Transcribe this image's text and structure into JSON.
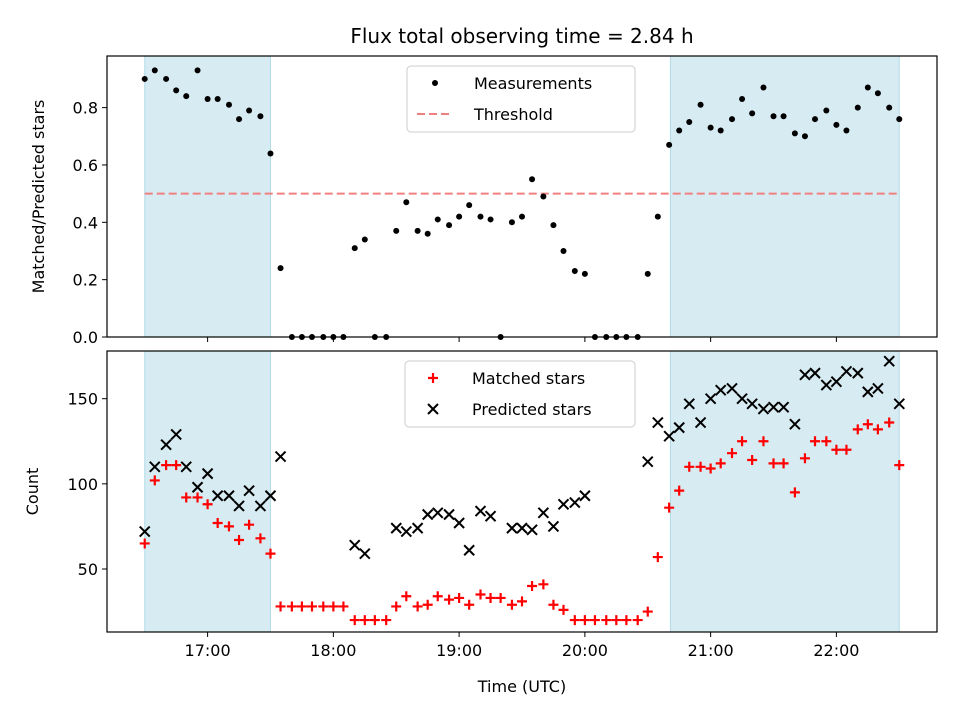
{
  "chart_data": {
    "title": "Flux total observing time = 2.84 h",
    "xlabel": "Time (UTC)",
    "x_tick_labels": [
      "17:00",
      "18:00",
      "19:00",
      "20:00",
      "21:00",
      "22:00"
    ],
    "x_tick_hours": [
      17,
      18,
      19,
      20,
      21,
      22
    ],
    "xlim_hours": [
      16.2,
      22.8
    ],
    "shaded_intervals_hours": [
      [
        16.5,
        17.5
      ],
      [
        20.68,
        22.5
      ]
    ],
    "shade_color": "#add8e6",
    "panels": [
      {
        "type": "scatter",
        "ylabel": "Matched/Predicted stars",
        "ylim": [
          0,
          0.98
        ],
        "y_ticks": [
          0.0,
          0.2,
          0.4,
          0.6,
          0.8
        ],
        "y_tick_labels": [
          "0.0",
          "0.2",
          "0.4",
          "0.6",
          "0.8"
        ],
        "threshold": 0.5,
        "threshold_color": "#f08080",
        "legend": [
          "Measurements",
          "Threshold"
        ],
        "series": [
          {
            "name": "Measurements",
            "color": "#000000",
            "marker": "dot",
            "x": [
              16.5,
              16.58,
              16.67,
              16.75,
              16.83,
              16.92,
              17.0,
              17.08,
              17.17,
              17.25,
              17.33,
              17.42,
              17.5,
              17.58,
              17.67,
              17.75,
              17.83,
              17.92,
              18.0,
              18.08,
              18.17,
              18.25,
              18.33,
              18.42,
              18.5,
              18.58,
              18.67,
              18.75,
              18.83,
              18.92,
              19.0,
              19.08,
              19.17,
              19.25,
              19.33,
              19.42,
              19.5,
              19.58,
              19.67,
              19.75,
              19.83,
              19.92,
              20.0,
              20.08,
              20.17,
              20.25,
              20.33,
              20.42,
              20.5,
              20.58,
              20.67,
              20.75,
              20.83,
              20.92,
              21.0,
              21.08,
              21.17,
              21.25,
              21.33,
              21.42,
              21.5,
              21.58,
              21.67,
              21.75,
              21.83,
              21.92,
              22.0,
              22.08,
              22.17,
              22.25,
              22.33,
              22.42,
              22.5
            ],
            "y": [
              0.9,
              0.93,
              0.9,
              0.86,
              0.84,
              0.93,
              0.83,
              0.83,
              0.81,
              0.76,
              0.79,
              0.77,
              0.64,
              0.24,
              0.0,
              0.0,
              0.0,
              0.0,
              0.0,
              0.0,
              0.31,
              0.34,
              0.0,
              0.0,
              0.37,
              0.47,
              0.37,
              0.36,
              0.41,
              0.39,
              0.42,
              0.46,
              0.42,
              0.41,
              0.0,
              0.4,
              0.42,
              0.55,
              0.49,
              0.39,
              0.3,
              0.23,
              0.22,
              0.0,
              0.0,
              0.0,
              0.0,
              0.0,
              0.22,
              0.42,
              0.67,
              0.72,
              0.75,
              0.81,
              0.73,
              0.72,
              0.76,
              0.83,
              0.78,
              0.87,
              0.77,
              0.77,
              0.71,
              0.7,
              0.76,
              0.79,
              0.74,
              0.72,
              0.8,
              0.87,
              0.85,
              0.8,
              0.76
            ]
          }
        ]
      },
      {
        "type": "scatter",
        "ylabel": "Count",
        "ylim": [
          13,
          178
        ],
        "y_ticks": [
          50,
          100,
          150
        ],
        "y_tick_labels": [
          "50",
          "100",
          "150"
        ],
        "legend": [
          "Matched stars",
          "Predicted stars"
        ],
        "series": [
          {
            "name": "Matched stars",
            "color": "#ff0000",
            "marker": "plus",
            "x": [
              16.5,
              16.58,
              16.67,
              16.75,
              16.83,
              16.92,
              17.0,
              17.08,
              17.17,
              17.25,
              17.33,
              17.42,
              17.5,
              17.58,
              17.67,
              17.75,
              17.83,
              17.92,
              18.0,
              18.08,
              18.17,
              18.25,
              18.33,
              18.42,
              18.5,
              18.58,
              18.67,
              18.75,
              18.83,
              18.92,
              19.0,
              19.08,
              19.17,
              19.25,
              19.33,
              19.42,
              19.5,
              19.58,
              19.67,
              19.75,
              19.83,
              19.92,
              20.0,
              20.08,
              20.17,
              20.25,
              20.33,
              20.42,
              20.5,
              20.58,
              20.67,
              20.75,
              20.83,
              20.92,
              21.0,
              21.08,
              21.17,
              21.25,
              21.33,
              21.42,
              21.5,
              21.58,
              21.67,
              21.75,
              21.83,
              21.92,
              22.0,
              22.08,
              22.17,
              22.25,
              22.33,
              22.42,
              22.5
            ],
            "y": [
              65,
              102,
              111,
              111,
              92,
              92,
              88,
              77,
              75,
              67,
              76,
              68,
              59,
              28,
              28,
              28,
              28,
              28,
              28,
              28,
              20,
              20,
              20,
              20,
              28,
              34,
              28,
              29,
              34,
              32,
              33,
              29,
              35,
              33,
              33,
              29,
              31,
              40,
              41,
              29,
              26,
              20,
              20,
              20,
              20,
              20,
              20,
              20,
              25,
              57,
              86,
              96,
              110,
              110,
              109,
              112,
              118,
              125,
              114,
              125,
              112,
              112,
              95,
              115,
              125,
              125,
              120,
              120,
              132,
              135,
              132,
              136,
              111
            ]
          },
          {
            "name": "Predicted stars",
            "color": "#000000",
            "marker": "x",
            "x": [
              16.5,
              16.58,
              16.67,
              16.75,
              16.83,
              16.92,
              17.0,
              17.08,
              17.17,
              17.25,
              17.33,
              17.42,
              17.5,
              17.58,
              18.17,
              18.25,
              18.5,
              18.58,
              18.67,
              18.75,
              18.83,
              18.92,
              19.0,
              19.08,
              19.17,
              19.25,
              19.42,
              19.5,
              19.58,
              19.67,
              19.75,
              19.83,
              19.92,
              20.0,
              20.5,
              20.58,
              20.67,
              20.75,
              20.83,
              20.92,
              21.0,
              21.08,
              21.17,
              21.25,
              21.33,
              21.42,
              21.5,
              21.58,
              21.67,
              21.75,
              21.83,
              21.92,
              22.0,
              22.08,
              22.17,
              22.25,
              22.33,
              22.42,
              22.5
            ],
            "y": [
              72,
              110,
              123,
              129,
              110,
              98,
              106,
              93,
              93,
              87,
              96,
              87,
              93,
              116,
              64,
              59,
              74,
              72,
              74,
              82,
              83,
              82,
              77,
              61,
              84,
              81,
              74,
              74,
              73,
              83,
              75,
              88,
              89,
              93,
              113,
              136,
              128,
              133,
              147,
              136,
              150,
              155,
              156,
              150,
              147,
              144,
              145,
              145,
              135,
              164,
              165,
              158,
              160,
              166,
              165,
              154,
              156,
              172,
              147
            ]
          }
        ]
      }
    ]
  }
}
